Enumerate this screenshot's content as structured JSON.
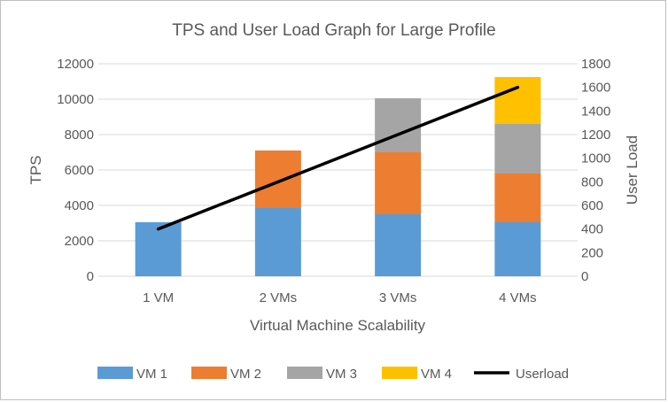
{
  "chart_data": {
    "type": "bar",
    "stacked": true,
    "title": "TPS and User Load Graph for Large Profile",
    "xlabel": "Virtual Machine Scalability",
    "ylabel": "TPS",
    "y2label": "User Load",
    "categories": [
      "1 VM",
      "2 VMs",
      "3 VMs",
      "4 VMs"
    ],
    "ylim": [
      0,
      12000
    ],
    "yticks": [
      "0",
      "2000",
      "4000",
      "6000",
      "8000",
      "10000",
      "12000"
    ],
    "y2lim": [
      0,
      1800
    ],
    "y2ticks": [
      "0",
      "200",
      "400",
      "600",
      "800",
      "1000",
      "1200",
      "1400",
      "1600",
      "1800"
    ],
    "grid": true,
    "legend_position": "bottom",
    "series": [
      {
        "name": "VM 1",
        "color": "#5b9bd5",
        "values": [
          3050,
          3850,
          3500,
          3050
        ]
      },
      {
        "name": "VM 2",
        "color": "#ed7d31",
        "values": [
          0,
          3250,
          3500,
          2750
        ]
      },
      {
        "name": "VM 3",
        "color": "#a5a5a5",
        "values": [
          0,
          0,
          3050,
          2800
        ]
      },
      {
        "name": "VM 4",
        "color": "#ffc000",
        "values": [
          0,
          0,
          0,
          2650
        ]
      }
    ],
    "line_series": {
      "name": "Userload",
      "color": "#000000",
      "axis": "right",
      "values": [
        400,
        800,
        1200,
        1600
      ]
    }
  }
}
